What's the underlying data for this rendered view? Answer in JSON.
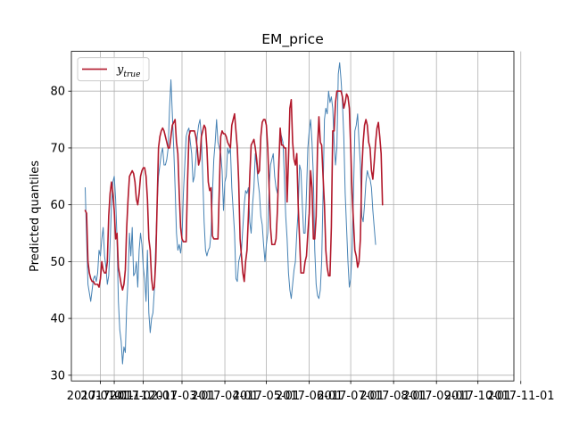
{
  "chart_data": {
    "type": "line",
    "title": "EM_price",
    "xlabel": "",
    "ylabel": "Predicted quantiles",
    "xlim": [
      "2016-12-11",
      "2017-10-27"
    ],
    "ylim": [
      29,
      87
    ],
    "yticks": [
      30,
      40,
      50,
      60,
      70,
      80
    ],
    "xtick_labels": [
      "2017-01-01",
      "2017-02-01",
      "2017-03-01",
      "2017-04-01",
      "2017-05-01",
      "2017-06-01",
      "2017-07-01",
      "2017-08-01",
      "2017-09-01",
      "2017-10-01",
      "2017-11-01",
      "2017-01-11"
    ],
    "grid": true,
    "legend": {
      "position": "upper-left",
      "entries": [
        {
          "label": "y",
          "subscript": "true",
          "color": "#b2182b"
        }
      ]
    },
    "x_start": "2016-12-21",
    "x_step": "1 day",
    "series": [
      {
        "color": "#4682b4",
        "linewidth": 1,
        "values": [
          63,
          54,
          46,
          44.5,
          43,
          45,
          47,
          47.5,
          46.5,
          48,
          52,
          51,
          54,
          56,
          51,
          49,
          46,
          47.5,
          53,
          60,
          64,
          65,
          61,
          54,
          43,
          38,
          36,
          32,
          35,
          34,
          42,
          47,
          55,
          51,
          56,
          47.5,
          48,
          50,
          45.5,
          52,
          55,
          53,
          49,
          47,
          43,
          52,
          41,
          37.5,
          40,
          41,
          45,
          53,
          60,
          65,
          67,
          69,
          70,
          67,
          67,
          68,
          70,
          77,
          82,
          76,
          70,
          63,
          55,
          52,
          53,
          51.5,
          54,
          62,
          67,
          72,
          73,
          73.5,
          71,
          69,
          64,
          65,
          68,
          72,
          74,
          75,
          72,
          65,
          57,
          52,
          51,
          52,
          52.5,
          55,
          62,
          68,
          71,
          75,
          71,
          70,
          69,
          66,
          59,
          64,
          65,
          70,
          69,
          70,
          63,
          59,
          55,
          47,
          46.5,
          50,
          51,
          52,
          56,
          60,
          62.5,
          62,
          63,
          57,
          55,
          60,
          63,
          69,
          67,
          64,
          62,
          58,
          56.5,
          53,
          50,
          53,
          55,
          63,
          67,
          68,
          69,
          65,
          63,
          62,
          66,
          73,
          72,
          71,
          65,
          58,
          54,
          48,
          45,
          43.5,
          46,
          48.5,
          50,
          55,
          59,
          67,
          66,
          60,
          55,
          55,
          62,
          70,
          73,
          75,
          71,
          65,
          52,
          46,
          44,
          43.5,
          45,
          50,
          62,
          75,
          77,
          76,
          80,
          78,
          79,
          77,
          71,
          67,
          70,
          83,
          85,
          82,
          78,
          72,
          62,
          56,
          50,
          45.5,
          47,
          52,
          62,
          73,
          74,
          76,
          71,
          67,
          58,
          57,
          60,
          64,
          66,
          65,
          64.5,
          63,
          59,
          56,
          53
        ]
      },
      {
        "name": "y",
        "color": "#b2182b",
        "linewidth": 1.6,
        "values": [
          59,
          58.5,
          50,
          48,
          47,
          46.5,
          46.5,
          46,
          46,
          46,
          45.5,
          47,
          50,
          48.5,
          48,
          48,
          50,
          58,
          62,
          64,
          62,
          59,
          54,
          55,
          49,
          47.5,
          46,
          45,
          46,
          48.5,
          56,
          61,
          65,
          65.5,
          66,
          65.5,
          64,
          61,
          60,
          62,
          65,
          66,
          66.5,
          66.5,
          65,
          61,
          54,
          52,
          47,
          45,
          45.5,
          50,
          60,
          70,
          72,
          73,
          73.5,
          73,
          72,
          71,
          70,
          70,
          72,
          74,
          74.5,
          75,
          71,
          69,
          62,
          56,
          54,
          53.5,
          53.5,
          53.5,
          64,
          72,
          73,
          73,
          73,
          73,
          72,
          70,
          67,
          68,
          72,
          73,
          74,
          73.5,
          70,
          64,
          62.5,
          63,
          54.5,
          54,
          54,
          54,
          54,
          63,
          72,
          73,
          72.5,
          72.5,
          72,
          71,
          70.5,
          70,
          74,
          75,
          76,
          73,
          70,
          64,
          54,
          51,
          48,
          46.5,
          50,
          52,
          58,
          65,
          70.5,
          71,
          71.5,
          70,
          68,
          65.5,
          66,
          72,
          74.5,
          75,
          75,
          74,
          70,
          63,
          56,
          53,
          53,
          53,
          54,
          59,
          67,
          73.5,
          70.5,
          70.5,
          70,
          70,
          60.5,
          68,
          77,
          78.5,
          71,
          68,
          67,
          69,
          60,
          54,
          48,
          48,
          48,
          50,
          51,
          55,
          58.5,
          66,
          63,
          54,
          54,
          58,
          70,
          75.5,
          71,
          70.5,
          65,
          60,
          52,
          49,
          47.5,
          47.5,
          56,
          73,
          73,
          78,
          80,
          80,
          80,
          80,
          79,
          77,
          78,
          79.5,
          79,
          77,
          70,
          62,
          57,
          52,
          51,
          49,
          50,
          54,
          66,
          71,
          74,
          75,
          74,
          71,
          70,
          66,
          64.5,
          67.5,
          71,
          73.5,
          74.5,
          72,
          69,
          60
        ]
      }
    ]
  }
}
